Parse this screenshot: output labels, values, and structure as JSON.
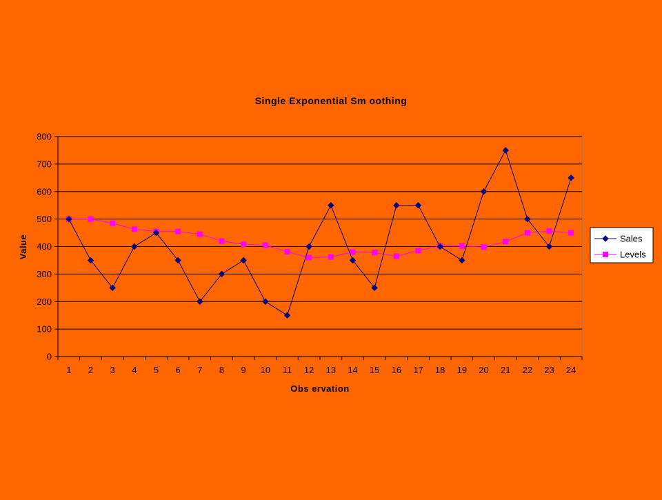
{
  "chart_data": {
    "type": "line",
    "title": "Single Exponential Sm oothing",
    "xlabel": "Obs ervation",
    "ylabel": "Value",
    "categories": [
      "1",
      "2",
      "3",
      "4",
      "5",
      "6",
      "7",
      "8",
      "9",
      "10",
      "11",
      "12",
      "13",
      "14",
      "15",
      "16",
      "17",
      "18",
      "19",
      "20",
      "21",
      "22",
      "23",
      "24"
    ],
    "y_ticks": [
      "0",
      "100",
      "200",
      "300",
      "400",
      "500",
      "600",
      "700",
      "800"
    ],
    "ylim": [
      0,
      800
    ],
    "grid": "horizontal",
    "legend_position": "right",
    "series": [
      {
        "name": "Sales",
        "color": "#000080",
        "marker": "diamond",
        "values": [
          500,
          350,
          250,
          400,
          450,
          350,
          200,
          300,
          350,
          200,
          150,
          400,
          550,
          350,
          250,
          550,
          550,
          400,
          350,
          600,
          750,
          500,
          400,
          650
        ]
      },
      {
        "name": "Levels",
        "color": "#FF00FF",
        "marker": "square",
        "values": [
          500,
          500,
          485,
          463,
          455,
          455,
          445,
          420,
          408,
          405,
          381,
          360,
          362,
          380,
          378,
          365,
          385,
          402,
          402,
          398,
          418,
          450,
          456,
          450
        ]
      }
    ]
  },
  "colors": {
    "background": "#FF6600",
    "gridline": "#000000",
    "legend_background": "#FFFFFF"
  }
}
